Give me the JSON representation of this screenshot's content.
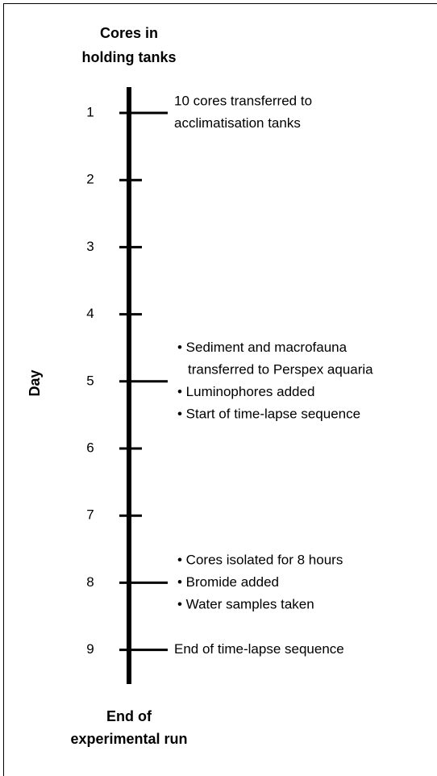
{
  "header": {
    "top_label": [
      "Cores in",
      "holding tanks"
    ],
    "bottom_label": [
      "End of",
      "experimental run"
    ],
    "axis_label": "Day"
  },
  "days": [
    1,
    2,
    3,
    4,
    5,
    6,
    7,
    8,
    9
  ],
  "events": [
    {
      "day": 1,
      "lines": [
        "10 cores transferred to",
        "acclimatisation tanks"
      ]
    },
    {
      "day": 5,
      "lines": [
        "• Sediment and macrofauna",
        "transferred to Perspex aquaria",
        "• Luminophores added",
        "• Start of time-lapse sequence"
      ]
    },
    {
      "day": 8,
      "lines": [
        "• Cores isolated for 8 hours",
        "• Bromide added",
        "• Water samples taken"
      ]
    },
    {
      "day": 9,
      "lines": [
        "End of time-lapse sequence"
      ]
    }
  ]
}
